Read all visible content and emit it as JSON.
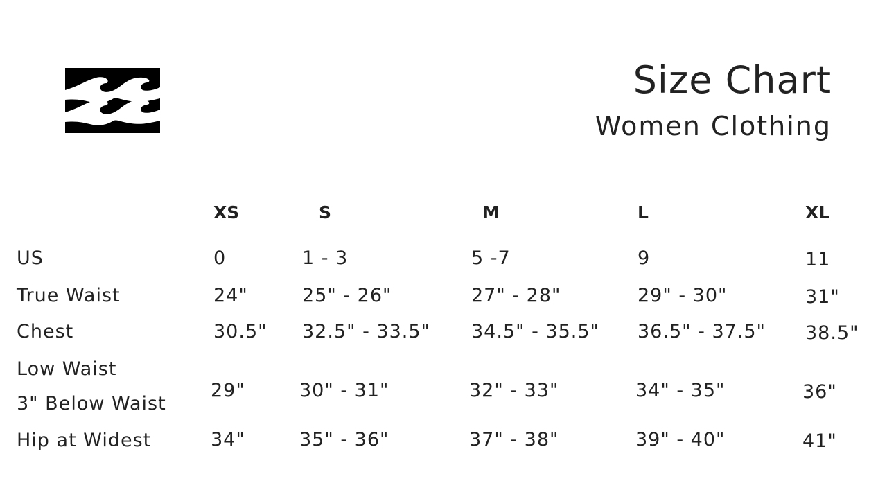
{
  "logo": {
    "name": "billabong-wave-logo"
  },
  "title": "Size Chart",
  "subtitle": "Women Clothing",
  "table": {
    "sizes": [
      "XS",
      "S",
      "M",
      "L",
      "XL"
    ],
    "rows": [
      {
        "label": "US",
        "values": [
          "0",
          "1 - 3",
          "5 -7",
          "9",
          "11"
        ]
      },
      {
        "label": "True Waist",
        "values": [
          "24\"",
          "25\" - 26\"",
          "27\" - 28\"",
          "29\" - 30\"",
          "31\""
        ]
      },
      {
        "label": "Chest",
        "values": [
          "30.5\"",
          "32.5\" - 33.5\"",
          "34.5\" - 35.5\"",
          "36.5\" - 37.5\"",
          "38.5\""
        ]
      },
      {
        "label": "Low Waist",
        "label2": "3\" Below Waist",
        "values": [
          "29\"",
          "30\" - 31\"",
          "32\" - 33\"",
          "34\" - 35\"",
          "36\""
        ]
      },
      {
        "label": "Hip at Widest",
        "values": [
          "34\"",
          "35\" - 36\"",
          "37\" - 38\"",
          "39\" - 40\"",
          "41\""
        ]
      }
    ]
  }
}
